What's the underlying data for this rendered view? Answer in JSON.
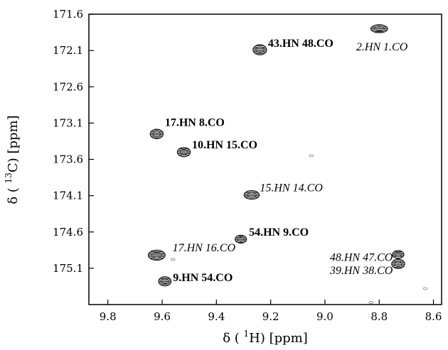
{
  "chart_data": {
    "type": "scatter",
    "title": "",
    "xlabel": {
      "prefix": "δ ( ",
      "sup": "1",
      "suffix": "H) [ppm]"
    },
    "ylabel": {
      "prefix": "δ ( ",
      "sup": "13",
      "suffix": "C) [ppm]"
    },
    "xlim": [
      9.87,
      8.57
    ],
    "ylim": [
      171.6,
      175.6
    ],
    "x_reversed": true,
    "y_reversed": true,
    "grid": false,
    "xticks": [
      {
        "value": 9.8,
        "label": "9.8"
      },
      {
        "value": 9.6,
        "label": "9.6"
      },
      {
        "value": 9.4,
        "label": "9.4"
      },
      {
        "value": 9.2,
        "label": "9.2"
      },
      {
        "value": 9.0,
        "label": "9.0"
      },
      {
        "value": 8.8,
        "label": "8.8"
      },
      {
        "value": 8.6,
        "label": "8.6"
      }
    ],
    "yticks": [
      {
        "value": 171.6,
        "label": "171.6"
      },
      {
        "value": 172.1,
        "label": "172.1"
      },
      {
        "value": 172.6,
        "label": "172.6"
      },
      {
        "value": 173.1,
        "label": "173.1"
      },
      {
        "value": 173.6,
        "label": "173.6"
      },
      {
        "value": 174.1,
        "label": "174.1"
      },
      {
        "value": 174.6,
        "label": "174.6"
      },
      {
        "value": 175.1,
        "label": "175.1"
      }
    ],
    "peaks": [
      {
        "label": "43.HN 48.CO",
        "x": 9.24,
        "y": 172.09,
        "style": "bold",
        "lx": 9.21,
        "ly": 172.0,
        "anchor": "start",
        "w": 0.024,
        "h": 0.1
      },
      {
        "label": "2.HN 1.CO",
        "x": 8.8,
        "y": 171.8,
        "style": "italic",
        "lx": 8.79,
        "ly": 172.05,
        "anchor": "middle",
        "w": 0.036,
        "h": 0.07
      },
      {
        "label": "17.HN 8.CO",
        "x": 9.62,
        "y": 173.25,
        "style": "bold",
        "lx": 9.59,
        "ly": 173.09,
        "anchor": "start",
        "w": 0.022,
        "h": 0.09
      },
      {
        "label": "10.HN 15.CO",
        "x": 9.52,
        "y": 173.5,
        "style": "bold",
        "lx": 9.49,
        "ly": 173.4,
        "anchor": "start",
        "w": 0.022,
        "h": 0.09
      },
      {
        "label": "15.HN 14.CO",
        "x": 9.27,
        "y": 174.09,
        "style": "italic",
        "lx": 9.24,
        "ly": 173.99,
        "anchor": "start",
        "w": 0.03,
        "h": 0.08
      },
      {
        "label": "54.HN 9.CO",
        "x": 9.31,
        "y": 174.7,
        "style": "bold",
        "lx": 9.28,
        "ly": 174.6,
        "anchor": "start",
        "w": 0.016,
        "h": 0.07
      },
      {
        "label": "17.HN 16.CO",
        "x": 9.62,
        "y": 174.92,
        "style": "italic",
        "lx": 9.33,
        "ly": 174.82,
        "anchor": "end",
        "w": 0.036,
        "h": 0.1
      },
      {
        "label": "48.HN 47.CO",
        "x": 8.73,
        "y": 174.91,
        "style": "italic",
        "lx": 8.75,
        "ly": 174.95,
        "anchor": "end",
        "w": 0.016,
        "h": 0.07
      },
      {
        "label": "39.HN 38.CO",
        "x": 8.73,
        "y": 175.04,
        "style": "italic",
        "lx": 8.75,
        "ly": 175.13,
        "anchor": "end",
        "w": 0.022,
        "h": 0.09
      },
      {
        "label": "9.HN 54.CO",
        "x": 9.59,
        "y": 175.28,
        "style": "bold",
        "lx": 9.56,
        "ly": 175.23,
        "anchor": "start",
        "w": 0.02,
        "h": 0.09
      }
    ],
    "noise_points": [
      {
        "x": 9.56,
        "y": 174.98
      },
      {
        "x": 9.05,
        "y": 173.55
      },
      {
        "x": 8.63,
        "y": 175.38
      },
      {
        "x": 8.83,
        "y": 175.57
      }
    ]
  }
}
